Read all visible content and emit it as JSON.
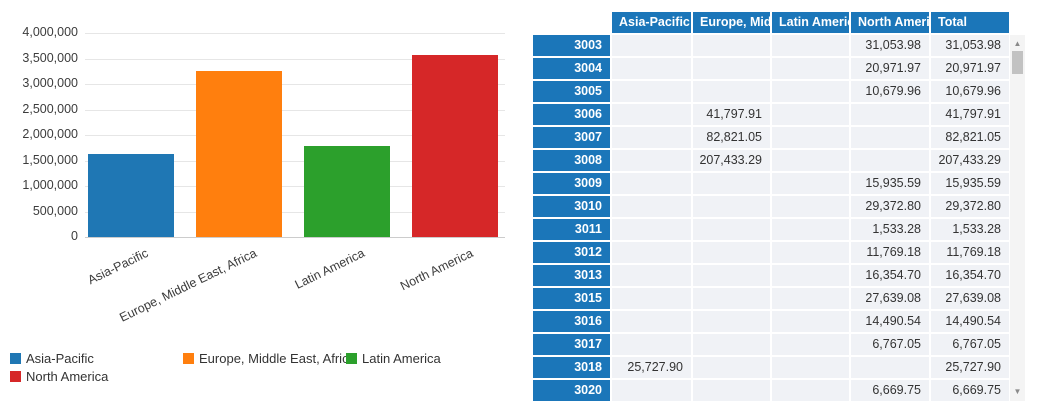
{
  "chart_data": {
    "type": "bar",
    "categories": [
      "Asia-Pacific",
      "Europe, Middle East, Africa",
      "Latin America",
      "North America"
    ],
    "values": [
      1620000,
      3250000,
      1780000,
      3560000
    ],
    "colors": [
      "#1f77b4",
      "#ff7f0e",
      "#2ca02c",
      "#d62728"
    ],
    "title": "",
    "xlabel": "",
    "ylabel": "",
    "ylim": [
      0,
      4000000
    ],
    "grid": true,
    "legend_position": "bottom",
    "ytick_values": [
      0,
      500000,
      1000000,
      1500000,
      2000000,
      2500000,
      3000000,
      3500000,
      4000000
    ],
    "ytick_labels": [
      "0",
      "500,000",
      "1,000,000",
      "1,500,000",
      "2,000,000",
      "2,500,000",
      "3,000,000",
      "3,500,000",
      "4,000,000"
    ],
    "legend": [
      {
        "label": "Asia-Pacific",
        "color": "#1f77b4"
      },
      {
        "label": "Europe, Middle East, Africa",
        "color": "#ff7f0e"
      },
      {
        "label": "Latin America",
        "color": "#2ca02c"
      },
      {
        "label": "North America",
        "color": "#d62728"
      }
    ]
  },
  "table": {
    "columns": [
      "",
      "Asia-Pacific",
      "Europe, Middle East, Africa",
      "Latin America",
      "North America",
      "Total"
    ],
    "rows": [
      {
        "id": "3003",
        "cells": [
          "",
          "",
          "",
          "31,053.98",
          "31,053.98"
        ]
      },
      {
        "id": "3004",
        "cells": [
          "",
          "",
          "",
          "20,971.97",
          "20,971.97"
        ]
      },
      {
        "id": "3005",
        "cells": [
          "",
          "",
          "",
          "10,679.96",
          "10,679.96"
        ]
      },
      {
        "id": "3006",
        "cells": [
          "",
          "41,797.91",
          "",
          "",
          "41,797.91"
        ]
      },
      {
        "id": "3007",
        "cells": [
          "",
          "82,821.05",
          "",
          "",
          "82,821.05"
        ]
      },
      {
        "id": "3008",
        "cells": [
          "",
          "207,433.29",
          "",
          "",
          "207,433.29"
        ]
      },
      {
        "id": "3009",
        "cells": [
          "",
          "",
          "",
          "15,935.59",
          "15,935.59"
        ]
      },
      {
        "id": "3010",
        "cells": [
          "",
          "",
          "",
          "29,372.80",
          "29,372.80"
        ]
      },
      {
        "id": "3011",
        "cells": [
          "",
          "",
          "",
          "1,533.28",
          "1,533.28"
        ]
      },
      {
        "id": "3012",
        "cells": [
          "",
          "",
          "",
          "11,769.18",
          "11,769.18"
        ]
      },
      {
        "id": "3013",
        "cells": [
          "",
          "",
          "",
          "16,354.70",
          "16,354.70"
        ]
      },
      {
        "id": "3015",
        "cells": [
          "",
          "",
          "",
          "27,639.08",
          "27,639.08"
        ]
      },
      {
        "id": "3016",
        "cells": [
          "",
          "",
          "",
          "14,490.54",
          "14,490.54"
        ]
      },
      {
        "id": "3017",
        "cells": [
          "",
          "",
          "",
          "6,767.05",
          "6,767.05"
        ]
      },
      {
        "id": "3018",
        "cells": [
          "25,727.90",
          "",
          "",
          "",
          "25,727.90"
        ]
      },
      {
        "id": "3020",
        "cells": [
          "",
          "",
          "",
          "6,669.75",
          "6,669.75"
        ]
      }
    ]
  },
  "icons": {
    "scroll_up": "▲",
    "scroll_down": "▼"
  }
}
